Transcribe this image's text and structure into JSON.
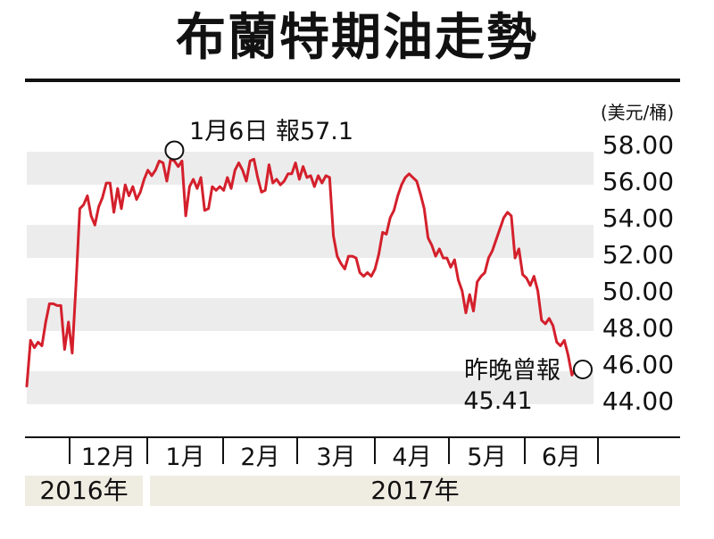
{
  "title": "布蘭特期油走勢",
  "chart_data": {
    "type": "line",
    "title": "布蘭特期油走勢",
    "unit_label": "(美元/桶)",
    "y_ticks": [
      "58.00",
      "56.00",
      "54.00",
      "52.00",
      "50.00",
      "48.00",
      "46.00",
      "44.00"
    ],
    "ylim": [
      43.5,
      58.5
    ],
    "grid": "alternating horizontal bands",
    "x_ticks": [
      "12月",
      "1月",
      "2月",
      "3月",
      "4月",
      "5月",
      "6月"
    ],
    "years": [
      "2016年",
      "2017年"
    ],
    "series": [
      {
        "color": "#d4202c",
        "values": [
          44.8,
          47.3,
          46.9,
          47.2,
          47.0,
          48.3,
          49.3,
          49.3,
          49.2,
          49.2,
          46.8,
          48.3,
          46.6,
          50.3,
          54.5,
          54.7,
          55.2,
          54.1,
          53.6,
          54.6,
          55.1,
          55.9,
          55.9,
          54.3,
          55.6,
          54.5,
          55.8,
          55.2,
          55.7,
          55.0,
          55.4,
          56.1,
          56.6,
          56.3,
          56.6,
          57.1,
          57.0,
          56.0,
          57.2,
          57.1,
          56.8,
          57.1,
          54.1,
          55.7,
          56.1,
          55.6,
          56.2,
          54.4,
          54.5,
          55.7,
          55.5,
          55.7,
          55.5,
          56.2,
          55.6,
          56.6,
          57.0,
          56.6,
          56.0,
          57.1,
          57.2,
          56.2,
          55.4,
          55.5,
          56.9,
          55.9,
          56.1,
          55.8,
          56.0,
          56.4,
          56.4,
          57.0,
          56.1,
          56.8,
          56.2,
          56.3,
          55.7,
          56.3,
          55.9,
          56.3,
          56.2,
          53.0,
          51.9,
          51.5,
          51.2,
          51.9,
          51.9,
          51.8,
          51.0,
          50.8,
          51.0,
          50.8,
          51.2,
          52.0,
          53.2,
          53.1,
          54.0,
          54.4,
          55.2,
          55.8,
          56.2,
          56.4,
          56.2,
          56.0,
          55.3,
          54.5,
          52.9,
          52.5,
          51.9,
          52.3,
          51.8,
          51.8,
          51.3,
          51.7,
          50.6,
          50.0,
          48.8,
          49.8,
          48.9,
          50.5,
          50.8,
          51.0,
          51.8,
          52.2,
          52.8,
          53.4,
          54.0,
          54.3,
          54.1,
          51.8,
          52.3,
          50.9,
          50.7,
          50.3,
          50.8,
          50.0,
          48.4,
          48.2,
          48.5,
          48.1,
          47.2,
          47.0,
          47.3,
          46.5,
          45.4,
          45.8
        ]
      }
    ],
    "annotations": [
      {
        "text": "1月6日 報57.1",
        "x_index": 39,
        "value": 57.1
      },
      {
        "text_line1": "昨晚曾報",
        "text_line2": "45.41",
        "x_index": 145,
        "value": 45.41
      }
    ]
  }
}
